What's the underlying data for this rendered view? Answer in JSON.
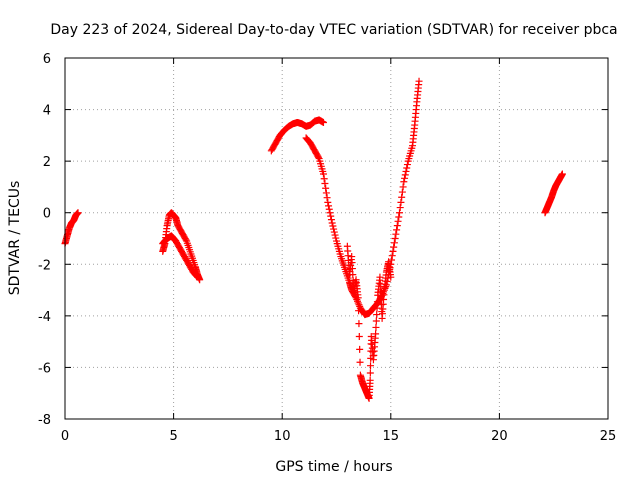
{
  "chart_data": {
    "type": "scatter",
    "title": "Day 223 of 2024, Sidereal Day-to-day VTEC variation (SDTVAR) for receiver pbca",
    "xlabel": "GPS time / hours",
    "ylabel": "SDTVAR / TECUs",
    "xlim": [
      0,
      25
    ],
    "ylim": [
      -8,
      6
    ],
    "xticks": [
      "0",
      "5",
      "10",
      "15",
      "20",
      "25"
    ],
    "yticks": [
      "-8",
      "-6",
      "-4",
      "-2",
      "0",
      "2",
      "4",
      "6"
    ],
    "grid": true,
    "marker": "+",
    "color": "#ff0000",
    "segments": [
      {
        "x": [
          0.0,
          0.1,
          0.2,
          0.3,
          0.4,
          0.5,
          0.6
        ],
        "y": [
          -1.2,
          -0.9,
          -0.6,
          -0.4,
          -0.3,
          -0.1,
          0.0
        ]
      },
      {
        "x": [
          4.5,
          4.6,
          4.7,
          4.8,
          4.9,
          5.0,
          5.1,
          5.2,
          5.4,
          5.6,
          5.8,
          6.0,
          6.1,
          6.2
        ],
        "y": [
          -1.5,
          -1.2,
          -0.5,
          -0.1,
          0.0,
          -0.1,
          -0.2,
          -0.5,
          -0.8,
          -1.1,
          -1.6,
          -2.1,
          -2.4,
          -2.6
        ]
      },
      {
        "x": [
          4.5,
          4.6,
          4.7,
          4.8,
          4.9,
          5.0,
          5.1,
          5.3,
          5.5,
          5.7,
          5.9,
          6.1
        ],
        "y": [
          -1.2,
          -1.1,
          -1.0,
          -0.95,
          -0.9,
          -1.0,
          -1.1,
          -1.4,
          -1.7,
          -2.0,
          -2.3,
          -2.5
        ]
      },
      {
        "x": [
          9.5,
          9.7,
          9.9,
          10.1,
          10.3,
          10.5,
          10.7,
          10.9,
          11.1,
          11.3,
          11.5,
          11.7,
          11.9
        ],
        "y": [
          2.4,
          2.7,
          3.0,
          3.2,
          3.35,
          3.45,
          3.5,
          3.45,
          3.35,
          3.4,
          3.55,
          3.6,
          3.5
        ]
      },
      {
        "x": [
          11.1,
          11.3,
          11.5,
          11.7,
          11.9,
          12.1,
          12.3,
          12.5,
          12.7,
          12.9,
          13.1,
          13.2,
          13.4,
          13.6,
          13.8,
          14.0,
          14.2,
          14.4,
          14.6,
          14.8,
          15.0,
          15.2,
          15.4,
          15.6,
          15.8,
          16.0,
          16.1,
          16.2,
          16.3
        ],
        "y": [
          2.9,
          2.7,
          2.4,
          2.1,
          1.5,
          0.4,
          -0.4,
          -1.1,
          -1.7,
          -2.2,
          -2.7,
          -3.0,
          -3.3,
          -3.7,
          -3.95,
          -3.9,
          -3.7,
          -3.5,
          -3.2,
          -2.8,
          -2.0,
          -1.0,
          0.0,
          1.2,
          2.0,
          2.6,
          3.4,
          4.3,
          5.1
        ]
      },
      {
        "x": [
          13.0,
          13.1,
          13.2,
          13.3,
          13.4,
          13.5,
          13.6,
          13.7,
          13.8,
          13.9,
          14.0,
          14.05,
          14.1,
          14.2,
          14.3,
          14.4,
          14.5,
          14.6,
          14.7,
          14.8,
          14.9,
          15.0
        ],
        "y": [
          -1.3,
          -2.4,
          -1.7,
          -3.1,
          -2.6,
          -3.3,
          -6.3,
          -6.6,
          -6.8,
          -7.0,
          -7.2,
          -6.5,
          -4.8,
          -5.7,
          -4.7,
          -3.2,
          -2.5,
          -4.1,
          -3.0,
          -2.3,
          -1.9,
          -2.5
        ]
      },
      {
        "x": [
          22.1,
          22.2,
          22.3,
          22.4,
          22.5,
          22.6,
          22.7,
          22.8,
          22.9
        ],
        "y": [
          0.0,
          0.2,
          0.4,
          0.6,
          0.85,
          1.05,
          1.2,
          1.35,
          1.5
        ]
      }
    ]
  }
}
